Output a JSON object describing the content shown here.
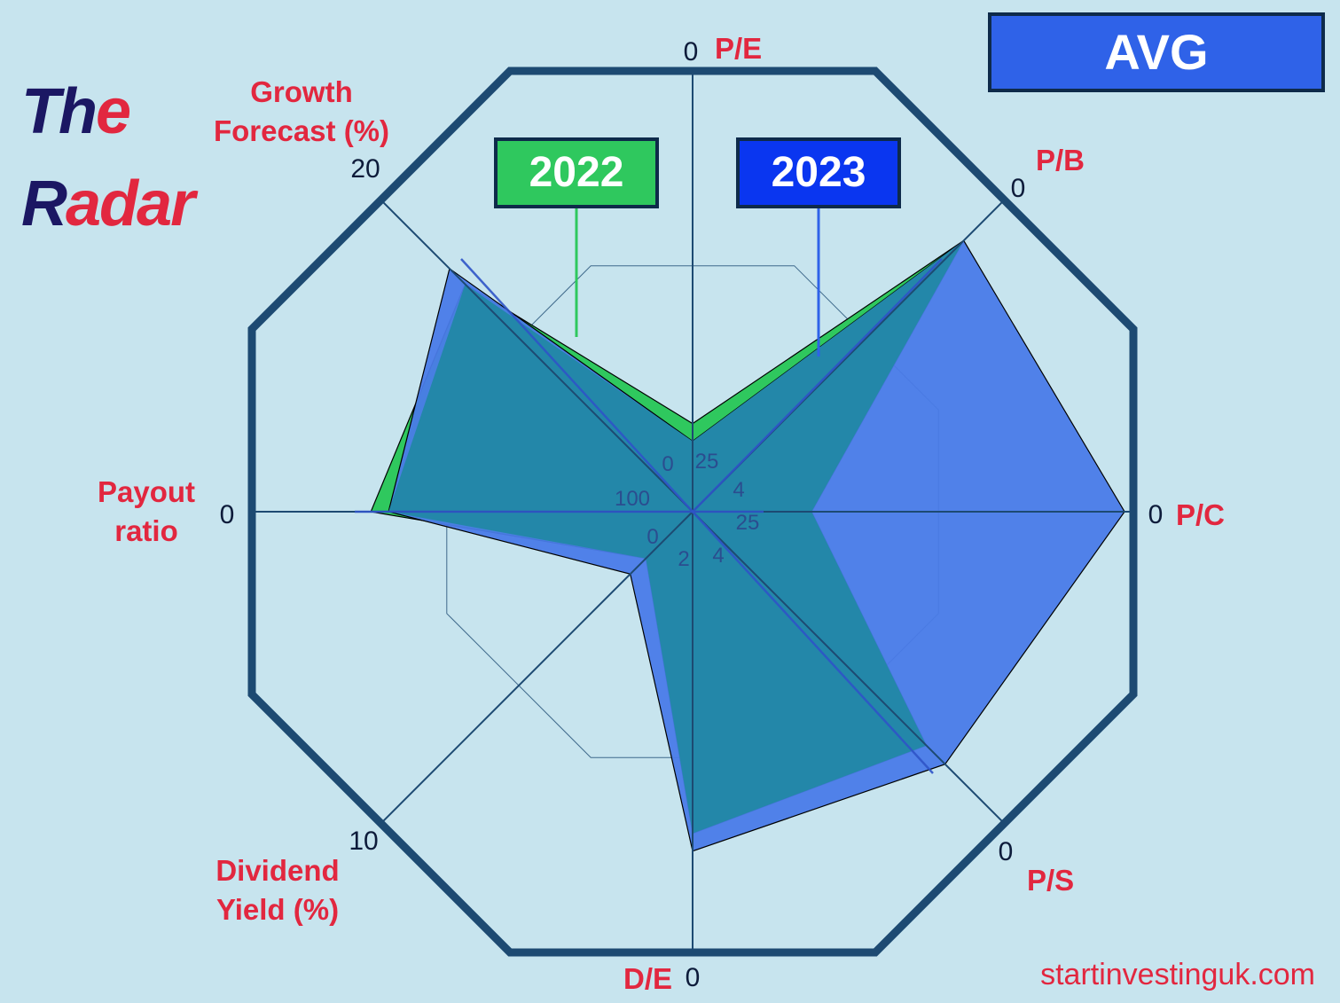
{
  "title": {
    "line1_dark": "Th",
    "line1_red": "e",
    "line2_dark": "R",
    "line2_red": "adar"
  },
  "badges": {
    "avg": "AVG",
    "y2022": "2022",
    "y2023": "2023"
  },
  "site": "startinvestinguk.com",
  "colors": {
    "background": "#c7e4ee",
    "frame": "#1d4a72",
    "label_red": "#e2273f",
    "series_2022": "#2fc85e",
    "series_2023": "#4a7be8",
    "overlap": "#2387a9"
  },
  "chart_data": {
    "type": "radar",
    "title": "",
    "axes": [
      {
        "label": "P/E",
        "outer": "0",
        "inner": "25"
      },
      {
        "label": "P/B",
        "outer": "0",
        "inner": "4"
      },
      {
        "label": "P/C",
        "outer": "0",
        "inner": "25"
      },
      {
        "label": "P/S",
        "outer": "0",
        "inner": "4"
      },
      {
        "label": "D/E",
        "outer": "0",
        "inner": "2"
      },
      {
        "label": "Dividend Yield (%)",
        "outer": "10",
        "inner": "0"
      },
      {
        "label": "Payout ratio",
        "outer": "0",
        "inner": "100"
      },
      {
        "label": "Growth Forecast (%)",
        "outer": "20",
        "inner": "0"
      }
    ],
    "scale": "normalized score (0 = center, 1 = outer ring)",
    "series": [
      {
        "name": "2022",
        "values": [
          0.2,
          0.87,
          0.27,
          0.75,
          0.73,
          0.15,
          0.73,
          0.73
        ]
      },
      {
        "name": "2023",
        "values": [
          0.16,
          0.87,
          0.98,
          0.81,
          0.77,
          0.2,
          0.69,
          0.78
        ]
      }
    ]
  }
}
